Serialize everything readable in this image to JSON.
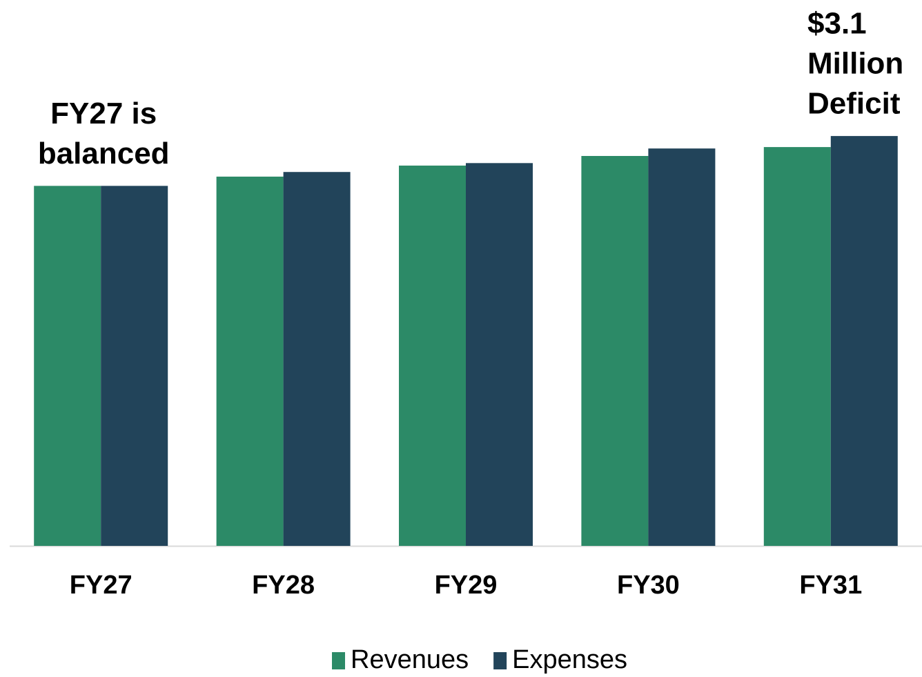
{
  "chart_data": {
    "type": "bar",
    "categories": [
      "FY27",
      "FY28",
      "FY29",
      "FY30",
      "FY31"
    ],
    "series": [
      {
        "name": "Revenues",
        "color": "#2c8a67",
        "values": [
          101.1,
          103.7,
          106.8,
          109.5,
          112.0
        ]
      },
      {
        "name": "Expenses",
        "color": "#22445a",
        "values": [
          101.1,
          105.0,
          107.5,
          111.6,
          115.1
        ]
      }
    ],
    "ylim": [
      0,
      153.3
    ],
    "annotations": [
      {
        "lines": [
          "FY27 is",
          "balanced"
        ]
      },
      {
        "lines": [
          "$3.1",
          "Million",
          "Deficit"
        ]
      }
    ],
    "legend": "bottom"
  }
}
